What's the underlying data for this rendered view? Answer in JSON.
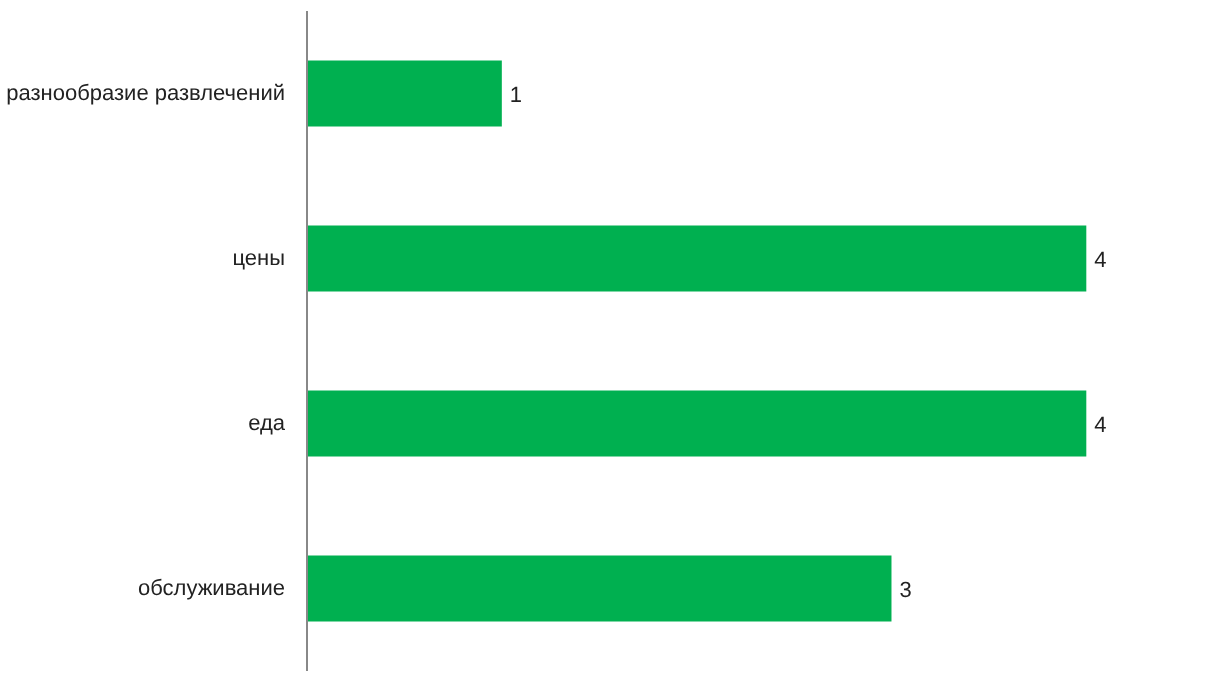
{
  "chart_data": {
    "type": "bar",
    "orientation": "horizontal",
    "categories": [
      "разнообразие развлечений",
      "цены",
      "еда",
      "обслуживание"
    ],
    "values": [
      1,
      4,
      4,
      3
    ],
    "color": "#00b050",
    "data_labels": true,
    "tick_labels": "y"
  }
}
